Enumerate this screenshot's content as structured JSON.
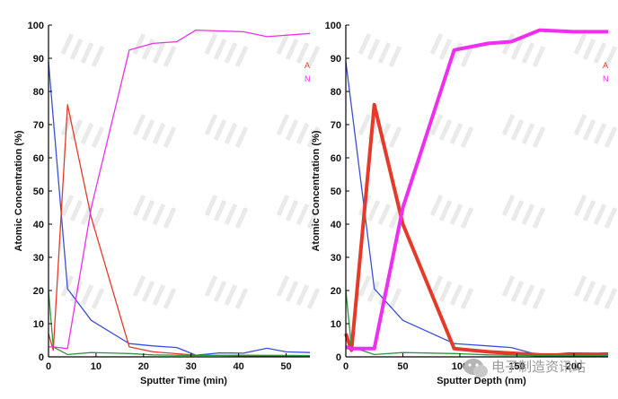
{
  "colors": {
    "series_blue": "#3a4fdc",
    "series_red": "#e53a2a",
    "series_green": "#2a9a3a",
    "series_magenta": "#ee2ff0",
    "series_cyan": "#1ab8b0",
    "axis": "#000000",
    "watermark": "#dadada"
  },
  "watermark": {
    "text": "电子制造资讯站",
    "icon": "wechat-chat-bubble-icon"
  },
  "chart_data": [
    {
      "type": "line",
      "title": "",
      "xlabel": "Sputter Time (min)",
      "ylabel": "Atomic Concentration (%)",
      "xlim": [
        0,
        55
      ],
      "ylim": [
        0,
        100
      ],
      "xticks": [
        "0",
        "10",
        "20",
        "30",
        "40",
        "50"
      ],
      "yticks": [
        "0",
        "10",
        "20",
        "30",
        "40",
        "50",
        "60",
        "70",
        "80",
        "90",
        "100"
      ],
      "legend_visible": [
        "A",
        "N"
      ],
      "legend_position": "right",
      "series": [
        {
          "color_key": "series_blue",
          "points": [
            [
              0,
              89
            ],
            [
              4,
              20.5
            ],
            [
              9,
              11
            ],
            [
              17,
              4
            ],
            [
              22,
              3.3
            ],
            [
              27,
              2.8
            ],
            [
              31,
              0.5
            ],
            [
              36,
              1.2
            ],
            [
              41,
              1.1
            ],
            [
              46,
              2.6
            ],
            [
              50,
              1.5
            ],
            [
              55,
              1.3
            ]
          ]
        },
        {
          "color_key": "series_red",
          "points": [
            [
              0,
              7
            ],
            [
              1,
              2
            ],
            [
              4,
              76
            ],
            [
              9,
              42
            ],
            [
              17,
              3
            ],
            [
              22,
              1.5
            ],
            [
              31,
              0.5
            ],
            [
              41,
              0.3
            ],
            [
              55,
              0.3
            ]
          ]
        },
        {
          "color_key": "series_green",
          "points": [
            [
              0,
              20
            ],
            [
              1,
              3
            ],
            [
              4,
              0.7
            ],
            [
              9,
              1.3
            ],
            [
              17,
              1
            ],
            [
              22,
              0.6
            ],
            [
              31,
              0.4
            ],
            [
              41,
              0.5
            ],
            [
              55,
              0.4
            ]
          ]
        },
        {
          "color_key": "series_magenta",
          "points": [
            [
              0,
              3
            ],
            [
              1,
              3
            ],
            [
              4,
              2.5
            ],
            [
              9,
              45
            ],
            [
              17,
              92.5
            ],
            [
              22,
              94.5
            ],
            [
              27,
              95
            ],
            [
              31,
              98.5
            ],
            [
              41,
              98
            ],
            [
              46,
              96.5
            ],
            [
              55,
              97.5
            ]
          ]
        }
      ]
    },
    {
      "type": "line",
      "title": "",
      "xlabel": "Sputter Depth (nm)",
      "ylabel": "Atomic Concentration (%)",
      "xlim": [
        0,
        230
      ],
      "ylim": [
        0,
        100
      ],
      "xticks": [
        "0",
        "50",
        "100",
        "150",
        "200"
      ],
      "yticks": [
        "0",
        "10",
        "20",
        "30",
        "40",
        "50",
        "60",
        "70",
        "80",
        "90",
        "100"
      ],
      "legend_visible": [
        "A",
        "N"
      ],
      "legend_position": "right",
      "series": [
        {
          "color_key": "series_blue",
          "points": [
            [
              0,
              89
            ],
            [
              25,
              20.5
            ],
            [
              50,
              11
            ],
            [
              95,
              4
            ],
            [
              125,
              3.3
            ],
            [
              145,
              2.8
            ],
            [
              170,
              0.5
            ],
            [
              195,
              1.2
            ],
            [
              220,
              1.1
            ],
            [
              230,
              1.2
            ]
          ]
        },
        {
          "color_key": "series_red",
          "width": 4,
          "points": [
            [
              0,
              7
            ],
            [
              5,
              2
            ],
            [
              25,
              76
            ],
            [
              50,
              40
            ],
            [
              95,
              2.5
            ],
            [
              125,
              1.5
            ],
            [
              170,
              0.6
            ],
            [
              230,
              0.5
            ]
          ]
        },
        {
          "color_key": "series_green",
          "points": [
            [
              0,
              20
            ],
            [
              5,
              3
            ],
            [
              25,
              0.7
            ],
            [
              50,
              1.3
            ],
            [
              95,
              1
            ],
            [
              125,
              0.6
            ],
            [
              170,
              0.4
            ],
            [
              230,
              0.4
            ]
          ]
        },
        {
          "color_key": "series_magenta",
          "width": 4,
          "points": [
            [
              0,
              3
            ],
            [
              5,
              2.5
            ],
            [
              25,
              2.5
            ],
            [
              50,
              45
            ],
            [
              95,
              92.5
            ],
            [
              125,
              94.5
            ],
            [
              145,
              95
            ],
            [
              170,
              98.5
            ],
            [
              200,
              98
            ],
            [
              230,
              98
            ]
          ]
        }
      ]
    }
  ]
}
